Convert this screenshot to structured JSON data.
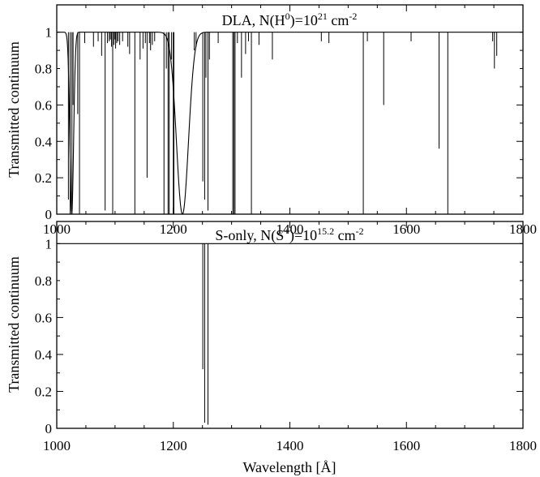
{
  "chart_data": [
    {
      "type": "line",
      "panel": "top",
      "title_parts": [
        {
          "text": "DLA, N(H",
          "sup": false
        },
        {
          "text": "0",
          "sup": true
        },
        {
          "text": ")=10",
          "sup": false
        },
        {
          "text": "21",
          "sup": true
        },
        {
          "text": " cm",
          "sup": false
        },
        {
          "text": "-2",
          "sup": true
        }
      ],
      "ylabel": "Transmitted continuum",
      "xlabel": "",
      "xlim": [
        1000,
        1800
      ],
      "ylim": [
        0,
        1.15
      ],
      "yticks": [
        "0",
        "0.2",
        "0.4",
        "0.6",
        "0.8",
        "1"
      ],
      "ytick_values": [
        0,
        0.2,
        0.4,
        0.6,
        0.8,
        1
      ],
      "xticks": [
        "1000",
        "1200",
        "1400",
        "1600",
        "1800"
      ],
      "xtick_values": [
        1000,
        1200,
        1400,
        1600,
        1800
      ],
      "grid": false,
      "continuum": 1.0,
      "damped_profiles": [
        {
          "center": 1025.7,
          "width": 4.5
        },
        {
          "center": 1215.7,
          "width": 14.5
        }
      ],
      "absorption_lines": [
        {
          "x": 1020,
          "depth": 0.92
        },
        {
          "x": 1023,
          "depth": 1.0
        },
        {
          "x": 1026,
          "depth": 1.0
        },
        {
          "x": 1028,
          "depth": 0.4
        },
        {
          "x": 1036,
          "depth": 0.45
        },
        {
          "x": 1039,
          "depth": 1.0
        },
        {
          "x": 1048,
          "depth": 0.06
        },
        {
          "x": 1063,
          "depth": 0.08
        },
        {
          "x": 1071,
          "depth": 0.05
        },
        {
          "x": 1077,
          "depth": 0.13
        },
        {
          "x": 1083,
          "depth": 0.98
        },
        {
          "x": 1087,
          "depth": 0.06
        },
        {
          "x": 1090,
          "depth": 0.05
        },
        {
          "x": 1092,
          "depth": 0.04
        },
        {
          "x": 1094,
          "depth": 0.08
        },
        {
          "x": 1096,
          "depth": 1.0
        },
        {
          "x": 1098,
          "depth": 0.07
        },
        {
          "x": 1100,
          "depth": 0.04
        },
        {
          "x": 1101,
          "depth": 0.09
        },
        {
          "x": 1103,
          "depth": 0.06
        },
        {
          "x": 1105,
          "depth": 0.05
        },
        {
          "x": 1108,
          "depth": 0.07
        },
        {
          "x": 1113,
          "depth": 0.05
        },
        {
          "x": 1122,
          "depth": 0.08
        },
        {
          "x": 1125,
          "depth": 0.12
        },
        {
          "x": 1134,
          "depth": 1.0
        },
        {
          "x": 1143,
          "depth": 0.15
        },
        {
          "x": 1148,
          "depth": 0.09
        },
        {
          "x": 1152,
          "depth": 0.06
        },
        {
          "x": 1155,
          "depth": 0.8
        },
        {
          "x": 1159,
          "depth": 0.06
        },
        {
          "x": 1161,
          "depth": 0.1
        },
        {
          "x": 1164,
          "depth": 0.07
        },
        {
          "x": 1168,
          "depth": 0.05
        },
        {
          "x": 1184,
          "depth": 1.0
        },
        {
          "x": 1188,
          "depth": 0.2
        },
        {
          "x": 1191,
          "depth": 1.0
        },
        {
          "x": 1193,
          "depth": 1.0
        },
        {
          "x": 1197,
          "depth": 0.15
        },
        {
          "x": 1200,
          "depth": 1.0
        },
        {
          "x": 1201,
          "depth": 1.0
        },
        {
          "x": 1236,
          "depth": 0.1
        },
        {
          "x": 1239,
          "depth": 0.08
        },
        {
          "x": 1250.6,
          "depth": 0.82
        },
        {
          "x": 1253.8,
          "depth": 0.92
        },
        {
          "x": 1256,
          "depth": 0.25
        },
        {
          "x": 1259.5,
          "depth": 0.98
        },
        {
          "x": 1262,
          "depth": 0.15
        },
        {
          "x": 1277,
          "depth": 0.06
        },
        {
          "x": 1302,
          "depth": 1.0
        },
        {
          "x": 1304,
          "depth": 1.0
        },
        {
          "x": 1306,
          "depth": 1.0
        },
        {
          "x": 1310,
          "depth": 0.06
        },
        {
          "x": 1317,
          "depth": 0.25
        },
        {
          "x": 1324,
          "depth": 0.12
        },
        {
          "x": 1329,
          "depth": 0.05
        },
        {
          "x": 1334,
          "depth": 1.0
        },
        {
          "x": 1347,
          "depth": 0.07
        },
        {
          "x": 1370,
          "depth": 0.15
        },
        {
          "x": 1454,
          "depth": 0.05
        },
        {
          "x": 1467,
          "depth": 0.06
        },
        {
          "x": 1526,
          "depth": 1.0
        },
        {
          "x": 1533,
          "depth": 0.05
        },
        {
          "x": 1561,
          "depth": 0.4
        },
        {
          "x": 1608,
          "depth": 0.05
        },
        {
          "x": 1656,
          "depth": 0.64
        },
        {
          "x": 1671,
          "depth": 1.0
        },
        {
          "x": 1748,
          "depth": 0.05
        },
        {
          "x": 1751,
          "depth": 0.2
        },
        {
          "x": 1755,
          "depth": 0.13
        }
      ]
    },
    {
      "type": "line",
      "panel": "bottom",
      "title_parts": [
        {
          "text": "S-only, N(S",
          "sup": false
        },
        {
          "text": "+",
          "sup": true
        },
        {
          "text": ")=10",
          "sup": false
        },
        {
          "text": "15.2",
          "sup": true
        },
        {
          "text": " cm",
          "sup": false
        },
        {
          "text": "-2",
          "sup": true
        }
      ],
      "ylabel": "Transmitted continuum",
      "xlabel": "Wavelength [Å]",
      "xlim": [
        1000,
        1800
      ],
      "ylim": [
        0,
        1.12
      ],
      "yticks": [
        "0",
        "0.2",
        "0.4",
        "0.6",
        "0.8",
        "1"
      ],
      "ytick_values": [
        0,
        0.2,
        0.4,
        0.6,
        0.8,
        1
      ],
      "xticks": [
        "1000",
        "1200",
        "1400",
        "1600",
        "1800"
      ],
      "xtick_values": [
        1000,
        1200,
        1400,
        1600,
        1800
      ],
      "grid": false,
      "continuum": 1.0,
      "damped_profiles": [],
      "absorption_lines": [
        {
          "x": 1250.6,
          "depth": 0.68
        },
        {
          "x": 1253.8,
          "depth": 0.97
        },
        {
          "x": 1259.5,
          "depth": 0.98
        }
      ]
    }
  ]
}
